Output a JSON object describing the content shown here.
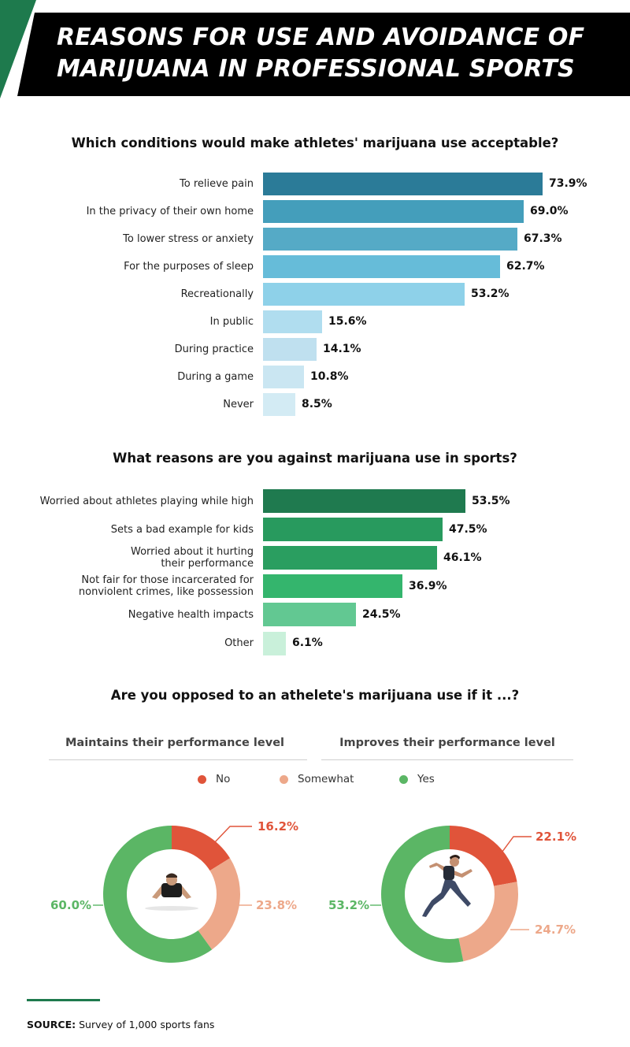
{
  "title": "REASONS FOR USE AND AVOIDANCE OF MARIJUANA IN PROFESSIONAL SPORTS",
  "colors": {
    "header_bg": "#000000",
    "header_accent": "#1e7a4d",
    "no": "#e0543a",
    "somewhat": "#eda88a",
    "yes": "#5bb665"
  },
  "chart_data": [
    {
      "type": "bar",
      "orientation": "horizontal",
      "title": "Which conditions would make athletes' marijuana use acceptable?",
      "categories": [
        "To relieve pain",
        "In the privacy of their own home",
        "To lower stress or anxiety",
        "For the purposes of sleep",
        "Recreationally",
        "In public",
        "During practice",
        "During a game",
        "Never"
      ],
      "values": [
        73.9,
        69.0,
        67.3,
        62.7,
        53.2,
        15.6,
        14.1,
        10.8,
        8.5
      ],
      "labels": [
        "73.9%",
        "69.0%",
        "67.3%",
        "62.7%",
        "53.2%",
        "15.6%",
        "14.1%",
        "10.8%",
        "8.5%"
      ],
      "colors": [
        "#2b7b98",
        "#449ebb",
        "#55aac6",
        "#66bcd9",
        "#8ed1e9",
        "#b0ddef",
        "#bfe0ef",
        "#cae6f2",
        "#d3ebf4"
      ],
      "xlim": [
        0,
        100
      ]
    },
    {
      "type": "bar",
      "orientation": "horizontal",
      "title": "What reasons are you against marijuana use in sports?",
      "categories": [
        [
          "Worried about athletes playing while high"
        ],
        [
          "Sets a bad example for kids"
        ],
        [
          "Worried about it hurting",
          "their performance"
        ],
        [
          "Not fair for those incarcerated for",
          "nonviolent crimes, like possession"
        ],
        [
          "Negative health impacts"
        ],
        [
          "Other"
        ]
      ],
      "values": [
        53.5,
        47.5,
        46.1,
        36.9,
        24.5,
        6.1
      ],
      "labels": [
        "53.5%",
        "47.5%",
        "46.1%",
        "36.9%",
        "24.5%",
        "6.1%"
      ],
      "colors": [
        "#1f7a4f",
        "#289a5e",
        "#2a9e60",
        "#34b56d",
        "#62c892",
        "#c9f0da"
      ],
      "xlim": [
        0,
        100
      ]
    },
    {
      "type": "pie",
      "donut": true,
      "section_title": "Are you opposed to an athelete's marijuana use if it ...?",
      "title": "Maintains their performance level",
      "legend": [
        "No",
        "Somewhat",
        "Yes"
      ],
      "categories": [
        "No",
        "Somewhat",
        "Yes"
      ],
      "values": [
        16.2,
        23.8,
        60.0
      ],
      "labels": [
        "16.2%",
        "23.8%",
        "60.0%"
      ]
    },
    {
      "type": "pie",
      "donut": true,
      "title": "Improves their performance level",
      "categories": [
        "No",
        "Somewhat",
        "Yes"
      ],
      "values": [
        22.1,
        24.7,
        53.2
      ],
      "labels": [
        "22.1%",
        "24.7%",
        "53.2%"
      ]
    }
  ],
  "source": {
    "label": "SOURCE:",
    "text": " Survey of 1,000 sports fans"
  }
}
